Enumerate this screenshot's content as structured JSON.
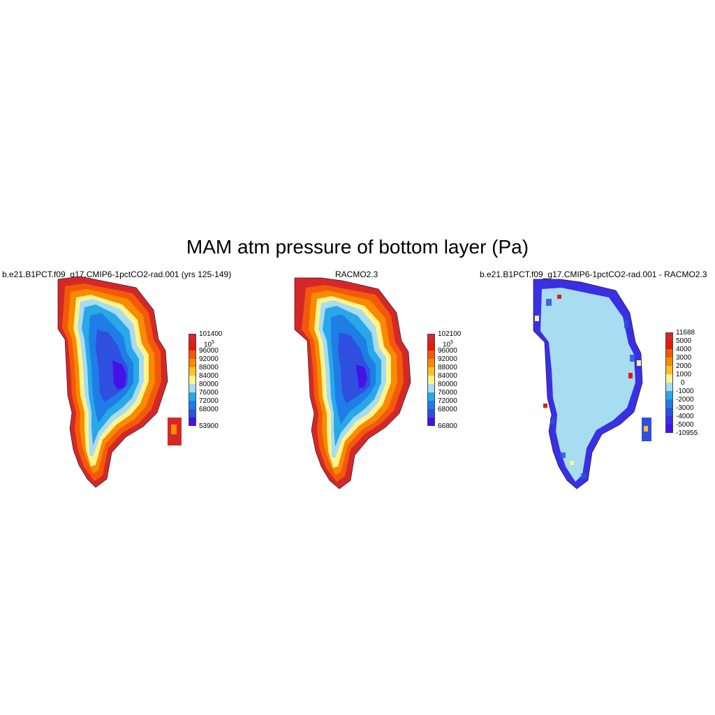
{
  "title": "MAM atm pressure of bottom layer (Pa)",
  "panels": [
    {
      "title": "b.e21.B1PCT.f09_g17.CMIP6-1pctCO2-rad.001 (yrs 125-149)",
      "colorbar": {
        "labels": [
          "101400",
          "10^5",
          "96000",
          "92000",
          "88000",
          "84000",
          "80000",
          "76000",
          "72000",
          "68000",
          "53900"
        ],
        "colors": [
          "#d62728",
          "#e8180c",
          "#f25a0a",
          "#f88b00",
          "#ffbf2b",
          "#fff48d",
          "#a8dcf0",
          "#28a8e8",
          "#1e7de6",
          "#2f4fe0",
          "#4412e8"
        ]
      }
    },
    {
      "title": "RACMO2.3",
      "colorbar": {
        "labels": [
          "102100",
          "10^5",
          "96000",
          "92000",
          "88000",
          "84000",
          "80000",
          "76000",
          "72000",
          "68000",
          "66800"
        ],
        "colors": [
          "#d62728",
          "#e8180c",
          "#f25a0a",
          "#f88b00",
          "#ffbf2b",
          "#fff48d",
          "#a8dcf0",
          "#28a8e8",
          "#1e7de6",
          "#2f4fe0",
          "#4412e8"
        ]
      }
    },
    {
      "title": "b.e21.B1PCT.f09_g17.CMIP6-1pctCO2-rad.001 - RACMO2.3",
      "colorbar": {
        "labels": [
          "11688",
          "5000",
          "4000",
          "3000",
          "2000",
          "1000",
          "0",
          "-1000",
          "-2000",
          "-3000",
          "-4000",
          "-5000",
          "-10955"
        ],
        "colors": [
          "#d62728",
          "#e8180c",
          "#f25a0a",
          "#f88b00",
          "#ffbf2b",
          "#fff48d",
          "#a8dcf0",
          "#28a8e8",
          "#1e7de6",
          "#2f4fe0",
          "#3a2fe4",
          "#4412e8",
          "#5a00ee"
        ]
      }
    }
  ]
}
